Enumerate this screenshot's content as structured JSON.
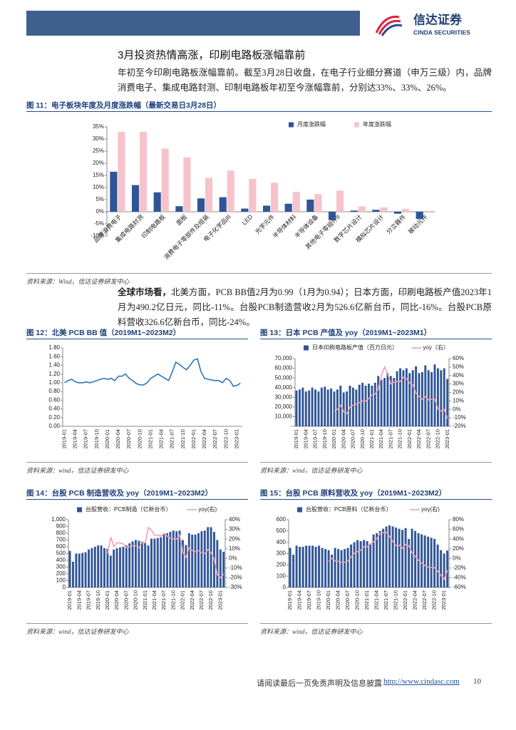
{
  "header": {
    "logo_cn": "信达证券",
    "logo_en": "CINDA SECURITIES"
  },
  "section_title": "3月投资热情高涨，印刷电路板涨幅靠前",
  "paragraphs": [
    {
      "text": "年初至今印刷电路板涨幅靠前。截至3月28日收盘，在电子行业细分赛道（申万三级）内，品牌消费电子、集成电路封测、印制电路板年初至今涨幅靠前，分别达33%、33%、26%。"
    },
    {
      "lead": "全球市场看，",
      "text": "北美方面，PCB BB值2月为0.99（1月为0.94）；日本方面，印刷电路板产值2023年1月为490.2亿日元，同比-11%。台股PCB制造营收2月为526.6亿新台币，同比-16%。台股PCB原料营收326.6亿新台币，同比-24%。"
    }
  ],
  "figures": [
    {
      "caption": "图 11：电子板块年度及月度涨跌幅（最新交易日3月28日）",
      "source": "资料来源：Wind，信达证券研发中心"
    },
    {
      "caption": "图 12：北美 PCB BB 值（2019M1~2023M2）",
      "source": "资料来源：wind，信达证券研发中心"
    },
    {
      "caption": "图 13：日本 PCB 产值及 yoy（2019M1~2023M1）",
      "source": "资料来源：wind，信达证券研发中心"
    },
    {
      "caption": "图 14：台股 PCB 制造营收及 yoy（2019M1~2023M2）",
      "source": "资料来源：wind，信达证券研发中心"
    },
    {
      "caption": "图 15：台股 PCB 原料营收及 yoy（2019M1~2023M2）",
      "source": "资料来源：wind，信达证券研发中心"
    }
  ],
  "chart_data": [
    {
      "type": "bar",
      "legend": "top-right",
      "categories": [
        "品牌消费电子",
        "集成电路封测",
        "印制电路板",
        "面板",
        "消费电子零部件及组装",
        "电子化学品III",
        "LED",
        "光学元件",
        "半导体材料",
        "半导体设备",
        "其他电子零组件II",
        "数字芯片设计",
        "模拟芯片设计",
        "分立器件",
        "被动元件"
      ],
      "series": [
        {
          "name": "月度涨跌幅",
          "color": "#2f5597",
          "values": [
            16.5,
            11,
            8,
            2.3,
            5.5,
            6,
            1.3,
            2.5,
            3.3,
            5,
            -3.5,
            0.5,
            0.8,
            -0.8,
            -3
          ]
        },
        {
          "name": "年度涨跌幅",
          "color": "#f7c3cb",
          "values": [
            33,
            33,
            26,
            22.5,
            14,
            17,
            13.5,
            12,
            8.2,
            7.3,
            8.7,
            2.2,
            1.8,
            1.2,
            0.3
          ]
        }
      ],
      "ylim": [
        -10,
        35
      ],
      "yticks": [
        {
          "value": -10,
          "label": "-10%"
        },
        {
          "value": -5,
          "label": "-5%"
        },
        {
          "value": 0,
          "label": "0%"
        },
        {
          "value": 5,
          "label": "5%"
        },
        {
          "value": 10,
          "label": "10%"
        },
        {
          "value": 15,
          "label": "15%"
        },
        {
          "value": 20,
          "label": "20%"
        },
        {
          "value": 25,
          "label": "25%"
        },
        {
          "value": 30,
          "label": "30%"
        },
        {
          "value": 35,
          "label": "35%"
        }
      ]
    },
    {
      "type": "line",
      "color": "#2e75b6",
      "x": [
        "2019-01",
        null,
        null,
        "2019-04",
        null,
        null,
        "2019-07",
        null,
        null,
        "2019-10",
        null,
        null,
        "2020-01",
        null,
        null,
        "2020-04",
        null,
        null,
        "2020-07",
        null,
        null,
        "2020-10",
        null,
        null,
        "2021-01",
        null,
        null,
        "2021-04",
        null,
        null,
        "2021-07",
        null,
        null,
        "2021-10",
        null,
        null,
        "2022-01",
        null,
        null,
        "2022-04",
        null,
        null,
        "2022-07",
        null,
        null,
        "2022-10",
        null,
        null,
        "2023-01",
        null
      ],
      "values": [
        1,
        1.05,
        1.08,
        1.02,
        1,
        1,
        1.02,
        1,
        1.02,
        1.05,
        1.08,
        1.1,
        1.08,
        1.1,
        1.05,
        1.15,
        1.15,
        1.2,
        1.1,
        1.05,
        0.98,
        0.95,
        0.95,
        1,
        1.1,
        1.15,
        1.2,
        1.15,
        1.1,
        1.05,
        1.25,
        1.47,
        1.42,
        1.35,
        1.3,
        1.4,
        1.52,
        1.55,
        1.25,
        1.1,
        1.08,
        1.06,
        1.05,
        1.05,
        1,
        1.1,
        1.05,
        0.92,
        0.94,
        0.99
      ],
      "ylim": [
        0,
        1.8
      ],
      "yticks": [
        {
          "value": 0,
          "label": "0.00"
        },
        {
          "value": 0.2,
          "label": "0.20"
        },
        {
          "value": 0.4,
          "label": "0.40"
        },
        {
          "value": 0.6,
          "label": "0.60"
        },
        {
          "value": 0.8,
          "label": "0.80"
        },
        {
          "value": 1,
          "label": "1.00"
        },
        {
          "value": 1.2,
          "label": "1.20"
        },
        {
          "value": 1.4,
          "label": "1.40"
        },
        {
          "value": 1.6,
          "label": "1.60"
        },
        {
          "value": 1.8,
          "label": "1.80"
        }
      ]
    },
    {
      "type": "bar-line",
      "legend": "top",
      "x": [
        "2019-01",
        null,
        null,
        "2019-04",
        null,
        null,
        "2019-07",
        null,
        null,
        "2019-10",
        null,
        null,
        "2020-01",
        null,
        null,
        "2020-04",
        null,
        null,
        "2020-07",
        null,
        null,
        "2020-10",
        null,
        null,
        "2021-01",
        null,
        null,
        "2021-04",
        null,
        null,
        "2021-07",
        null,
        null,
        "2021-10",
        null,
        null,
        "2022-01",
        null,
        null,
        "2022-04",
        null,
        null,
        "2022-07",
        null,
        null,
        "2022-10",
        null,
        null,
        "2023-01"
      ],
      "series": [
        {
          "name": "日本印刷电路板产值（百万日元）",
          "type": "bar",
          "color": "#2f5597",
          "values": [
            37000,
            38000,
            40000,
            36000,
            37000,
            40000,
            38000,
            36000,
            40000,
            41000,
            38000,
            39000,
            36000,
            38000,
            42000,
            35000,
            36000,
            42000,
            40000,
            38000,
            43000,
            45000,
            42000,
            44000,
            42000,
            45000,
            52000,
            48000,
            50000,
            55000,
            52000,
            50000,
            57000,
            60000,
            58000,
            60000,
            55000,
            58000,
            62000,
            55000,
            56000,
            63000,
            58000,
            56000,
            64000,
            60000,
            58000,
            60000,
            49020
          ]
        },
        {
          "name": "yoy（右）",
          "type": "line",
          "axis": "y2",
          "color": "#f2a0b4",
          "values": [
            null,
            null,
            null,
            null,
            null,
            null,
            null,
            null,
            null,
            null,
            null,
            null,
            -2,
            0,
            5,
            -3,
            -5,
            3,
            5,
            6,
            8,
            10,
            10,
            13,
            17,
            18,
            24,
            40,
            50,
            42,
            30,
            32,
            33,
            33,
            38,
            36,
            31,
            29,
            19,
            15,
            12,
            15,
            11,
            12,
            12,
            0,
            -2,
            0,
            -11
          ]
        }
      ],
      "ylim": [
        0,
        70000
      ],
      "yticks": [
        {
          "value": 0,
          "label": "-"
        },
        {
          "value": 10000,
          "label": "10,000"
        },
        {
          "value": 20000,
          "label": "20,000"
        },
        {
          "value": 30000,
          "label": "30,000"
        },
        {
          "value": 40000,
          "label": "40,000"
        },
        {
          "value": 50000,
          "label": "50,000"
        },
        {
          "value": 60000,
          "label": "60,000"
        },
        {
          "value": 70000,
          "label": "70,000"
        }
      ],
      "y2lim": [
        -20,
        60
      ],
      "y2ticks": [
        {
          "value": -20,
          "label": "-20%"
        },
        {
          "value": -10,
          "label": "-10%"
        },
        {
          "value": 0,
          "label": "0%"
        },
        {
          "value": 10,
          "label": "10%"
        },
        {
          "value": 20,
          "label": "20%"
        },
        {
          "value": 30,
          "label": "30%"
        },
        {
          "value": 40,
          "label": "40%"
        },
        {
          "value": 50,
          "label": "50%"
        },
        {
          "value": 60,
          "label": "60%"
        }
      ]
    },
    {
      "type": "bar-line",
      "legend": "top",
      "x": [
        "2019-01",
        null,
        null,
        "2019-04",
        null,
        null,
        "2019-07",
        null,
        null,
        "2019-10",
        null,
        null,
        "2020-01",
        null,
        null,
        "2020-04",
        null,
        null,
        "2020-07",
        null,
        null,
        "2020-10",
        null,
        null,
        "2021-01",
        null,
        null,
        "2021-04",
        null,
        null,
        "2021-07",
        null,
        null,
        "2021-10",
        null,
        null,
        "2022-01",
        null,
        null,
        "2022-04",
        null,
        null,
        "2022-07",
        null,
        null,
        "2022-10",
        null,
        null,
        "2023-01",
        null
      ],
      "series": [
        {
          "name": "台股营收：PCB制造（亿新台币）",
          "type": "bar",
          "color": "#2f5597",
          "values": [
            540,
            380,
            500,
            500,
            510,
            520,
            560,
            580,
            600,
            620,
            620,
            580,
            570,
            470,
            560,
            580,
            590,
            600,
            620,
            650,
            680,
            700,
            690,
            680,
            660,
            620,
            720,
            720,
            730,
            740,
            780,
            800,
            820,
            840,
            830,
            840,
            700,
            627,
            800,
            780,
            780,
            800,
            830,
            840,
            890,
            890,
            820,
            700,
            560,
            526.6
          ]
        },
        {
          "name": "yoy(右)",
          "type": "line",
          "axis": "y2",
          "color": "#f2a0b4",
          "values": [
            null,
            null,
            null,
            null,
            null,
            null,
            null,
            null,
            null,
            null,
            null,
            null,
            5,
            22,
            12,
            16,
            16,
            15,
            11,
            12,
            13,
            13,
            11,
            17,
            16,
            32,
            29,
            24,
            24,
            23,
            26,
            23,
            21,
            20,
            20,
            24,
            6,
            1,
            11,
            8,
            7,
            8,
            6,
            5,
            9,
            6,
            -1,
            -17,
            -20,
            -16
          ]
        }
      ],
      "ylim": [
        0,
        1000
      ],
      "yticks": [
        0,
        100,
        200,
        300,
        400,
        500,
        600,
        700,
        800,
        900,
        {
          "value": 1000,
          "label": "1,000"
        }
      ],
      "y2lim": [
        -30,
        40
      ],
      "y2ticks": [
        {
          "value": -30,
          "label": "-30%"
        },
        {
          "value": -20,
          "label": "-20%"
        },
        {
          "value": -10,
          "label": "-10%"
        },
        {
          "value": 0,
          "label": "0%"
        },
        {
          "value": 10,
          "label": "10%"
        },
        {
          "value": 20,
          "label": "20%"
        },
        {
          "value": 30,
          "label": "30%"
        },
        {
          "value": 40,
          "label": "40%"
        }
      ]
    },
    {
      "type": "bar-line",
      "legend": "top",
      "x": [
        "2019-01",
        null,
        null,
        "2019-04",
        null,
        null,
        "2019-07",
        null,
        null,
        "2019-10",
        null,
        null,
        "2020-01",
        null,
        null,
        "2020-04",
        null,
        null,
        "2020-07",
        null,
        null,
        "2020-10",
        null,
        null,
        "2021-01",
        null,
        null,
        "2021-04",
        null,
        null,
        "2021-07",
        null,
        null,
        "2021-10",
        null,
        null,
        "2022-01",
        null,
        null,
        "2022-04",
        null,
        null,
        "2022-07",
        null,
        null,
        "2022-10",
        null,
        null,
        "2023-01",
        null
      ],
      "series": [
        {
          "name": "台股营收：PCB原料（亿新台币）",
          "type": "bar",
          "color": "#2f5597",
          "values": [
            350,
            290,
            370,
            360,
            360,
            370,
            370,
            370,
            360,
            370,
            350,
            340,
            330,
            290,
            350,
            340,
            330,
            340,
            350,
            380,
            400,
            420,
            410,
            420,
            410,
            380,
            470,
            480,
            500,
            520,
            540,
            550,
            540,
            530,
            520,
            510,
            526,
            430,
            520,
            500,
            480,
            470,
            460,
            450,
            440,
            430,
            380,
            330,
            300,
            326.6
          ]
        },
        {
          "name": "yoy(右)",
          "type": "line",
          "axis": "y2",
          "color": "#f2a0b4",
          "values": [
            null,
            null,
            null,
            null,
            null,
            null,
            null,
            null,
            null,
            null,
            null,
            null,
            -6,
            0,
            -5,
            -6,
            -8,
            -8,
            -5,
            3,
            11,
            14,
            17,
            24,
            24,
            31,
            34,
            41,
            52,
            53,
            54,
            45,
            35,
            26,
            27,
            21,
            29,
            26,
            11,
            4,
            -4,
            -10,
            -15,
            -18,
            -19,
            -19,
            -27,
            -35,
            -43,
            -24
          ]
        }
      ],
      "ylim": [
        0,
        600
      ],
      "yticks": [
        0,
        100,
        200,
        300,
        400,
        500,
        600
      ],
      "y2lim": [
        -60,
        80
      ],
      "y2ticks": [
        {
          "value": -60,
          "label": "-60%"
        },
        {
          "value": -40,
          "label": "-40%"
        },
        {
          "value": -20,
          "label": "-20%"
        },
        {
          "value": 0,
          "label": "0%"
        },
        {
          "value": 20,
          "label": "20%"
        },
        {
          "value": 40,
          "label": "40%"
        },
        {
          "value": 60,
          "label": "60%"
        },
        {
          "value": 80,
          "label": "80%"
        }
      ]
    }
  ],
  "footer": {
    "notice": "请阅读最后一页免责声明及信息披露",
    "url": "http://www.cindasc.com",
    "page": "10"
  }
}
